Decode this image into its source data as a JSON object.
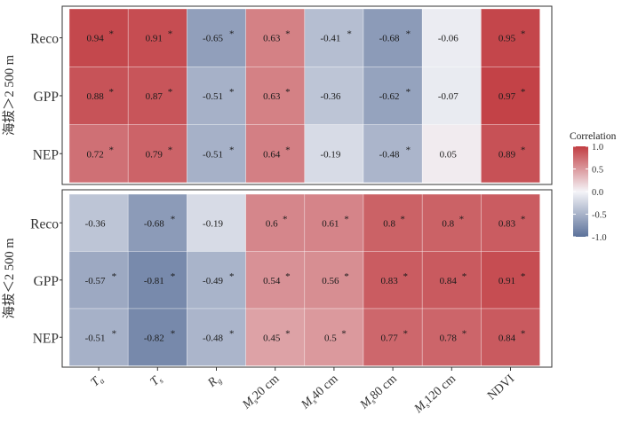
{
  "chart_data": {
    "type": "heatmap",
    "columns": [
      {
        "base": "T",
        "sub": "a",
        "suffix": ""
      },
      {
        "base": "T",
        "sub": "s",
        "suffix": ""
      },
      {
        "base": "R",
        "sub": "g",
        "suffix": ""
      },
      {
        "base": "M",
        "sub": "s",
        "suffix": "20 cm"
      },
      {
        "base": "M",
        "sub": "s",
        "suffix": "40 cm"
      },
      {
        "base": "M",
        "sub": "s",
        "suffix": "80 cm"
      },
      {
        "base": "M",
        "sub": "s",
        "suffix": "120 cm"
      },
      {
        "base": "NDVI",
        "sub": "",
        "suffix": ""
      }
    ],
    "rows": [
      "Reco",
      "GPP",
      "NEP"
    ],
    "panels": [
      {
        "label": "海拔＞2 500 m",
        "values": [
          [
            0.94,
            0.91,
            -0.65,
            0.63,
            -0.41,
            -0.68,
            -0.06,
            0.95
          ],
          [
            0.88,
            0.87,
            -0.51,
            0.63,
            -0.36,
            -0.62,
            -0.07,
            0.97
          ],
          [
            0.72,
            0.79,
            -0.51,
            0.64,
            -0.19,
            -0.48,
            0.05,
            0.89
          ]
        ],
        "labels": [
          [
            "0.94",
            "0.91",
            "-0.65",
            "0.63",
            "-0.41",
            "-0.68",
            "-0.06",
            "0.95"
          ],
          [
            "0.88",
            "0.87",
            "-0.51",
            "0.63",
            "-0.36",
            "-0.62",
            "-0.07",
            "0.97"
          ],
          [
            "0.72",
            "0.79",
            "-0.51",
            "0.64",
            "-0.19",
            "-0.48",
            "0.05",
            "0.89"
          ]
        ],
        "significant": [
          [
            true,
            true,
            true,
            true,
            true,
            true,
            false,
            true
          ],
          [
            true,
            true,
            true,
            true,
            false,
            true,
            false,
            true
          ],
          [
            true,
            true,
            true,
            true,
            false,
            true,
            false,
            true
          ]
        ]
      },
      {
        "label": "海拔＜2 500 m",
        "values": [
          [
            -0.36,
            -0.68,
            -0.19,
            0.6,
            0.61,
            0.8,
            0.8,
            0.83
          ],
          [
            -0.57,
            -0.81,
            -0.49,
            0.54,
            0.56,
            0.83,
            0.84,
            0.91
          ],
          [
            -0.51,
            -0.82,
            -0.48,
            0.45,
            0.5,
            0.77,
            0.78,
            0.84
          ]
        ],
        "labels": [
          [
            "-0.36",
            "-0.68",
            "-0.19",
            "0.6",
            "0.61",
            "0.8",
            "0.8",
            "0.83"
          ],
          [
            "-0.57",
            "-0.81",
            "-0.49",
            "0.54",
            "0.56",
            "0.83",
            "0.84",
            "0.91"
          ],
          [
            "-0.51",
            "-0.82",
            "-0.48",
            "0.45",
            "0.5",
            "0.77",
            "0.78",
            "0.84"
          ]
        ],
        "significant": [
          [
            false,
            true,
            false,
            true,
            true,
            true,
            true,
            true
          ],
          [
            true,
            true,
            true,
            true,
            true,
            true,
            true,
            true
          ],
          [
            true,
            true,
            true,
            true,
            true,
            true,
            true,
            true
          ]
        ]
      }
    ],
    "legend": {
      "title": "Correlation",
      "ticks": [
        "1.0",
        "0.5",
        "0.0",
        "-0.5",
        "-1.0"
      ],
      "tick_values": [
        1.0,
        0.5,
        0.0,
        -0.5,
        -1.0
      ],
      "placement": "right"
    },
    "significance_marker": "*",
    "value_range": [
      -1.0,
      1.0
    ],
    "colors": {
      "low": "#5b719a",
      "mid": "#f4f4f8",
      "high": "#c13d42"
    }
  }
}
